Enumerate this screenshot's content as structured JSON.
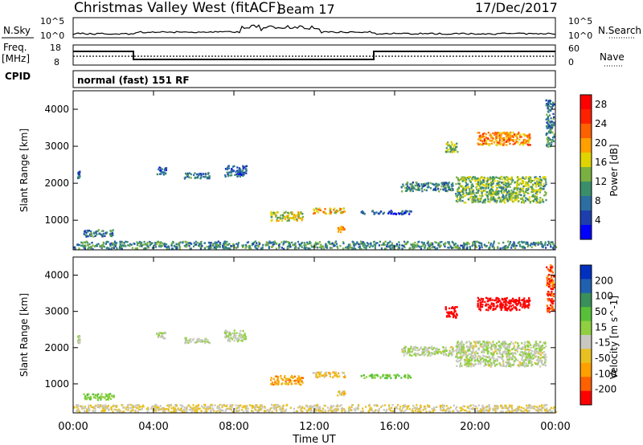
{
  "header": {
    "station": "Christmas Valley West (fitACF)",
    "beam": "Beam 17",
    "date": "17/Dec/2017"
  },
  "side_labels": {
    "nsky": "N.Sky",
    "freq_line1": "Freq.",
    "freq_line2": "[MHz]",
    "cpid": "CPID",
    "nsearch": "N.Search",
    "nave": "Nave"
  },
  "small_axes": {
    "noise_left_ticks": [
      "10^5",
      "10^0"
    ],
    "noise_right_ticks": [
      "10^5",
      "10^0"
    ],
    "freq_left_ticks": [
      "18",
      "8"
    ],
    "nave_right_ticks": [
      "60",
      "0"
    ]
  },
  "cpid_text": "normal (fast) 151 RF",
  "chart_data": [
    {
      "type": "heatmap",
      "title": "",
      "ylabel": "Slant Range [km]",
      "xlabel": "",
      "x_ticks": [
        "00:00",
        "04:00",
        "08:00",
        "12:00",
        "16:00",
        "20:00",
        "00:00"
      ],
      "y_ticks": [
        "1000",
        "2000",
        "3000",
        "4000"
      ],
      "ylim": [
        200,
        4500
      ],
      "colorbar": {
        "label": "Power [dB]",
        "ticks": [
          "4",
          "8",
          "12",
          "16",
          "20",
          "24",
          "28"
        ],
        "colors": [
          "#0000ff",
          "#1d3fae",
          "#2c6ea2",
          "#3a8f6a",
          "#7ab040",
          "#e0d400",
          "#ffa000",
          "#ff6000",
          "#ff2000",
          "#ff0000"
        ]
      },
      "regions": [
        {
          "t": [
            0.2,
            0.3
          ],
          "r": [
            2150,
            2350
          ],
          "value": 6
        },
        {
          "t": [
            0.5,
            2.0
          ],
          "r": [
            580,
            760
          ],
          "value": 8
        },
        {
          "t": [
            4.1,
            4.6
          ],
          "r": [
            2250,
            2450
          ],
          "value": 6
        },
        {
          "t": [
            5.5,
            6.8
          ],
          "r": [
            2150,
            2300
          ],
          "value": 9
        },
        {
          "t": [
            7.5,
            8.6
          ],
          "r": [
            2200,
            2500
          ],
          "value": 7
        },
        {
          "t": [
            9.8,
            11.4
          ],
          "r": [
            1000,
            1250
          ],
          "value": 16
        },
        {
          "t": [
            11.9,
            13.5
          ],
          "r": [
            1200,
            1350
          ],
          "value": 18
        },
        {
          "t": [
            13.1,
            13.5
          ],
          "r": [
            700,
            850
          ],
          "value": 20
        },
        {
          "t": [
            14.3,
            16.8
          ],
          "r": [
            1180,
            1280
          ],
          "value": 6
        },
        {
          "t": [
            16.3,
            18.9
          ],
          "r": [
            1800,
            2050
          ],
          "value": 9
        },
        {
          "t": [
            18.5,
            19.1
          ],
          "r": [
            2850,
            3150
          ],
          "value": 14
        },
        {
          "t": [
            19.0,
            23.5
          ],
          "r": [
            1500,
            2200
          ],
          "value": 13
        },
        {
          "t": [
            20.1,
            22.7
          ],
          "r": [
            3050,
            3400
          ],
          "value": 20
        },
        {
          "t": [
            23.5,
            23.9
          ],
          "r": [
            3000,
            4300
          ],
          "value": 9
        },
        {
          "t": [
            0.0,
            24.0
          ],
          "r": [
            250,
            450
          ],
          "value": 10
        }
      ]
    },
    {
      "type": "heatmap",
      "title": "",
      "ylabel": "Slant Range [km]",
      "xlabel": "Time UT",
      "x_ticks": [
        "00:00",
        "04:00",
        "08:00",
        "12:00",
        "16:00",
        "20:00",
        "00:00"
      ],
      "y_ticks": [
        "1000",
        "2000",
        "3000",
        "4000"
      ],
      "ylim": [
        200,
        4500
      ],
      "colorbar": {
        "label": "Velocity [m s^-1]",
        "ticks": [
          "200",
          "100",
          "50",
          "15",
          "-15",
          "-50",
          "-100",
          "-200"
        ],
        "colors": [
          "#0030c0",
          "#2060b0",
          "#3a8f5a",
          "#58c038",
          "#90d040",
          "#c8c8c0",
          "#e8c020",
          "#ffa000",
          "#ff6000",
          "#ff0000"
        ]
      },
      "regions": [
        {
          "t": [
            0.2,
            0.3
          ],
          "r": [
            2150,
            2350
          ],
          "value": 0
        },
        {
          "t": [
            0.5,
            2.0
          ],
          "r": [
            580,
            760
          ],
          "value": 40
        },
        {
          "t": [
            4.1,
            4.6
          ],
          "r": [
            2250,
            2450
          ],
          "value": 0
        },
        {
          "t": [
            5.5,
            6.8
          ],
          "r": [
            2150,
            2300
          ],
          "value": 0
        },
        {
          "t": [
            7.5,
            8.6
          ],
          "r": [
            2200,
            2500
          ],
          "value": 0
        },
        {
          "t": [
            9.8,
            11.4
          ],
          "r": [
            1000,
            1250
          ],
          "value": -90
        },
        {
          "t": [
            11.9,
            13.5
          ],
          "r": [
            1200,
            1350
          ],
          "value": -70
        },
        {
          "t": [
            13.1,
            13.5
          ],
          "r": [
            700,
            850
          ],
          "value": -50
        },
        {
          "t": [
            14.3,
            16.8
          ],
          "r": [
            1180,
            1280
          ],
          "value": 40
        },
        {
          "t": [
            16.3,
            18.9
          ],
          "r": [
            1800,
            2050
          ],
          "value": -10
        },
        {
          "t": [
            18.5,
            19.1
          ],
          "r": [
            2850,
            3150
          ],
          "value": -220
        },
        {
          "t": [
            19.0,
            23.5
          ],
          "r": [
            1500,
            2200
          ],
          "value": -5
        },
        {
          "t": [
            20.1,
            22.7
          ],
          "r": [
            3050,
            3400
          ],
          "value": -220
        },
        {
          "t": [
            23.5,
            23.9
          ],
          "r": [
            3000,
            4300
          ],
          "value": -150
        },
        {
          "t": [
            0.0,
            24.0
          ],
          "r": [
            250,
            450
          ],
          "value": -40
        }
      ]
    }
  ]
}
